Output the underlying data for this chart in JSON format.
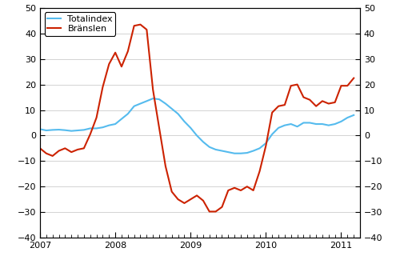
{
  "legend_totalindex": "Totalindex",
  "legend_branslen": "Bränslen",
  "xlim": [
    2007.0,
    2011.25
  ],
  "ylim": [
    -40,
    50
  ],
  "yticks": [
    -40,
    -30,
    -20,
    -10,
    0,
    10,
    20,
    30,
    40,
    50
  ],
  "xticks": [
    2007,
    2008,
    2009,
    2010,
    2011
  ],
  "color_total": "#55bbee",
  "color_branslen": "#cc2200",
  "linewidth_total": 1.5,
  "linewidth_branslen": 1.5,
  "totalindex_x": [
    2007.0,
    2007.083,
    2007.167,
    2007.25,
    2007.333,
    2007.417,
    2007.5,
    2007.583,
    2007.667,
    2007.75,
    2007.833,
    2007.917,
    2008.0,
    2008.083,
    2008.167,
    2008.25,
    2008.333,
    2008.417,
    2008.5,
    2008.583,
    2008.667,
    2008.75,
    2008.833,
    2008.917,
    2009.0,
    2009.083,
    2009.167,
    2009.25,
    2009.333,
    2009.417,
    2009.5,
    2009.583,
    2009.667,
    2009.75,
    2009.833,
    2009.917,
    2010.0,
    2010.083,
    2010.167,
    2010.25,
    2010.333,
    2010.417,
    2010.5,
    2010.583,
    2010.667,
    2010.75,
    2010.833,
    2010.917,
    2011.0,
    2011.083,
    2011.167
  ],
  "totalindex_y": [
    2.5,
    2.0,
    2.2,
    2.3,
    2.1,
    1.8,
    2.0,
    2.2,
    2.8,
    2.8,
    3.2,
    4.0,
    4.5,
    6.5,
    8.5,
    11.5,
    12.5,
    13.5,
    14.5,
    14.2,
    12.5,
    10.5,
    8.5,
    5.5,
    3.0,
    0.0,
    -2.5,
    -4.5,
    -5.5,
    -6.0,
    -6.5,
    -7.0,
    -7.0,
    -6.8,
    -6.0,
    -5.0,
    -3.0,
    0.5,
    3.0,
    4.0,
    4.5,
    3.5,
    5.0,
    5.0,
    4.5,
    4.5,
    4.0,
    4.5,
    5.5,
    7.0,
    8.0
  ],
  "branslen_x": [
    2007.0,
    2007.083,
    2007.167,
    2007.25,
    2007.333,
    2007.417,
    2007.5,
    2007.583,
    2007.667,
    2007.75,
    2007.833,
    2007.917,
    2008.0,
    2008.083,
    2008.167,
    2008.25,
    2008.333,
    2008.417,
    2008.5,
    2008.583,
    2008.667,
    2008.75,
    2008.833,
    2008.917,
    2009.0,
    2009.083,
    2009.167,
    2009.25,
    2009.333,
    2009.417,
    2009.5,
    2009.583,
    2009.667,
    2009.75,
    2009.833,
    2009.917,
    2010.0,
    2010.083,
    2010.167,
    2010.25,
    2010.333,
    2010.417,
    2010.5,
    2010.583,
    2010.667,
    2010.75,
    2010.833,
    2010.917,
    2011.0,
    2011.083,
    2011.167
  ],
  "branslen_y": [
    -5.0,
    -7.0,
    -8.0,
    -6.0,
    -5.0,
    -6.5,
    -5.5,
    -5.0,
    0.5,
    7.0,
    19.0,
    28.0,
    32.5,
    27.0,
    33.0,
    43.0,
    43.5,
    41.5,
    18.0,
    3.0,
    -12.0,
    -22.0,
    -25.0,
    -26.5,
    -25.0,
    -23.5,
    -25.5,
    -29.8,
    -29.8,
    -28.0,
    -21.5,
    -20.5,
    -21.5,
    -20.0,
    -21.5,
    -14.0,
    -4.0,
    9.0,
    11.5,
    12.0,
    19.5,
    20.0,
    15.0,
    14.0,
    11.5,
    13.5,
    12.5,
    13.0,
    19.5,
    19.5,
    22.5
  ],
  "grid_color": "#cccccc",
  "bg_color": "#ffffff"
}
